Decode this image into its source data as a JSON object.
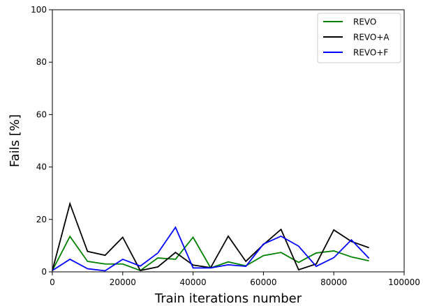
{
  "chart_data": {
    "type": "line",
    "title": "",
    "xlabel": "Train iterations number",
    "ylabel": "Fails [%]",
    "xlim": [
      0,
      100000
    ],
    "ylim": [
      0,
      100
    ],
    "xticks": [
      0,
      20000,
      40000,
      60000,
      80000,
      100000
    ],
    "yticks": [
      0,
      20,
      40,
      60,
      80,
      100
    ],
    "grid": false,
    "legend_position": "top-right",
    "x": [
      0,
      5000,
      10000,
      15000,
      20000,
      25000,
      30000,
      35000,
      40000,
      45000,
      50000,
      55000,
      60000,
      65000,
      70000,
      75000,
      80000,
      85000,
      90000
    ],
    "series": [
      {
        "name": "REVO",
        "color": "#008000",
        "values": [
          0.5,
          13.5,
          4.0,
          3.0,
          3.0,
          0.5,
          5.3,
          4.8,
          13.2,
          1.5,
          3.8,
          2.3,
          6.2,
          7.4,
          3.6,
          7.2,
          8.0,
          5.7,
          4.2
        ]
      },
      {
        "name": "REVO+A",
        "color": "#000000",
        "values": [
          0.5,
          26.0,
          7.8,
          6.3,
          13.2,
          0.5,
          1.9,
          7.4,
          2.6,
          1.6,
          13.6,
          4.0,
          10.4,
          16.2,
          0.8,
          3.0,
          16.0,
          11.6,
          9.2
        ]
      },
      {
        "name": "REVO+F",
        "color": "#0000ff",
        "values": [
          0.5,
          4.8,
          1.2,
          0.4,
          4.8,
          2.2,
          7.2,
          17.0,
          1.5,
          1.5,
          2.7,
          2.1,
          10.6,
          13.6,
          9.8,
          2.1,
          5.4,
          12.2,
          5.2
        ]
      }
    ]
  }
}
